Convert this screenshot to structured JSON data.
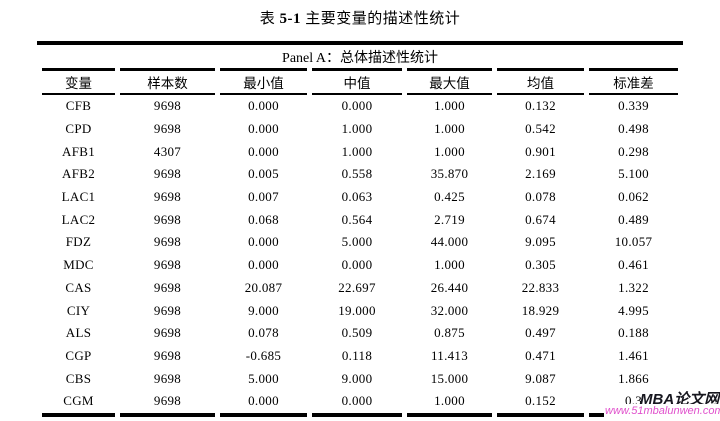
{
  "title": {
    "prefix": "表 ",
    "number": "5-1",
    "suffix": " 主要变量的描述性统计"
  },
  "table": {
    "panel_header": "Panel A：总体描述性统计",
    "columns": [
      "变量",
      "样本数",
      "最小值",
      "中值",
      "最大值",
      "均值",
      "标准差"
    ],
    "rows": [
      [
        "CFB",
        "9698",
        "0.000",
        "0.000",
        "1.000",
        "0.132",
        "0.339"
      ],
      [
        "CPD",
        "9698",
        "0.000",
        "1.000",
        "1.000",
        "0.542",
        "0.498"
      ],
      [
        "AFB1",
        "4307",
        "0.000",
        "1.000",
        "1.000",
        "0.901",
        "0.298"
      ],
      [
        "AFB2",
        "9698",
        "0.005",
        "0.558",
        "35.870",
        "2.169",
        "5.100"
      ],
      [
        "LAC1",
        "9698",
        "0.007",
        "0.063",
        "0.425",
        "0.078",
        "0.062"
      ],
      [
        "LAC2",
        "9698",
        "0.068",
        "0.564",
        "2.719",
        "0.674",
        "0.489"
      ],
      [
        "FDZ",
        "9698",
        "0.000",
        "5.000",
        "44.000",
        "9.095",
        "10.057"
      ],
      [
        "MDC",
        "9698",
        "0.000",
        "0.000",
        "1.000",
        "0.305",
        "0.461"
      ],
      [
        "CAS",
        "9698",
        "20.087",
        "22.697",
        "26.440",
        "22.833",
        "1.322"
      ],
      [
        "CIY",
        "9698",
        "9.000",
        "19.000",
        "32.000",
        "18.929",
        "4.995"
      ],
      [
        "ALS",
        "9698",
        "0.078",
        "0.509",
        "0.875",
        "0.497",
        "0.188"
      ],
      [
        "CGP",
        "9698",
        "-0.685",
        "0.118",
        "11.413",
        "0.471",
        "1.461"
      ],
      [
        "CBS",
        "9698",
        "5.000",
        "9.000",
        "15.000",
        "9.087",
        "1.866"
      ],
      [
        "CGM",
        "9698",
        "0.000",
        "0.000",
        "1.000",
        "0.152",
        "0.3"
      ]
    ]
  },
  "watermark": {
    "site_name": "MBA论文网",
    "site_url": "www.51mbalunwen.com",
    "name_color": "#17171f",
    "url_color": "#e050cc"
  }
}
